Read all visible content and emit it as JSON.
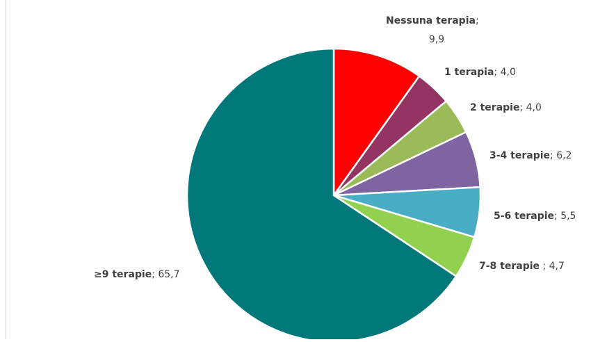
{
  "chart_data": {
    "type": "pie",
    "title": "",
    "slices": [
      {
        "label": "Nessuna terapia",
        "value": 9.9,
        "value_text": "9,9",
        "sep": ";",
        "color": "#FF0000"
      },
      {
        "label": "1 terapia",
        "value": 4.0,
        "value_text": "4,0",
        "sep": ";",
        "color": "#943462"
      },
      {
        "label": "2 terapie",
        "value": 4.0,
        "value_text": "4,0",
        "sep": ";",
        "color": "#9BBB59"
      },
      {
        "label": "3-4 terapie",
        "value": 6.2,
        "value_text": "6,2",
        "sep": ";",
        "color": "#8064A2"
      },
      {
        "label": "5-6 terapie",
        "value": 5.5,
        "value_text": "5,5",
        "sep": ";",
        "color": "#4BACC6"
      },
      {
        "label": "7-8 terapie",
        "value": 4.7,
        "value_text": "4,7",
        "sep": " ;",
        "color": "#92D050"
      },
      {
        "label": "≥9 terapie",
        "value": 65.7,
        "value_text": "65,7",
        "sep": ";",
        "color": "#00787A"
      }
    ],
    "start_angle_deg": 0,
    "direction": "clockwise",
    "legend": "none",
    "data_labels": "outside"
  }
}
